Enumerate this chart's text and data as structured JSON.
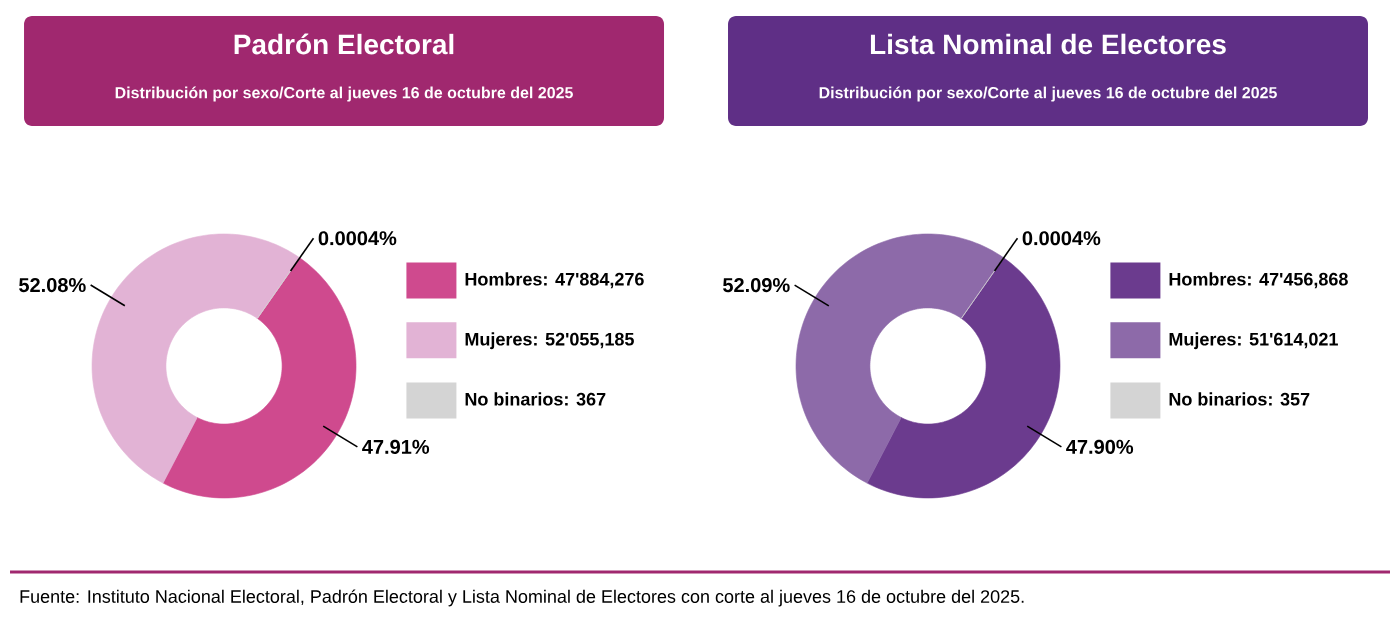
{
  "chart_data": [
    {
      "type": "donut",
      "title": "Padrón Electoral",
      "subtitle": "Distribución por sexo/Corte al jueves 16 de octubre del 2025",
      "categories": [
        "Hombres: 47'884,276",
        "Mujeres: 52'055,185",
        "No binarios: 367"
      ],
      "values": [
        47.91,
        52.08,
        0.0004
      ],
      "value_labels": [
        "47.91%",
        "52.08%",
        "0.0004%"
      ],
      "colors": [
        "#cf4a8e",
        "#e2b3d5",
        "#d4d4d4"
      ],
      "legend": "right",
      "annotations": [
        "Fuente: Instituto Nacional Electoral, Padrón Electoral y Lista Nominal de Electores con corte al jueves 16 de octubre del 2025."
      ]
    },
    {
      "type": "donut",
      "title": "Lista Nominal de Electores",
      "subtitle": "Distribución por sexo/Corte al jueves 16 de octubre del 2025",
      "categories": [
        "Hombres: 47'456,868",
        "Mujeres: 51'614,021",
        "No binarios: 357"
      ],
      "values": [
        47.9,
        52.09,
        0.0004
      ],
      "value_labels": [
        "47.90%",
        "52.09%",
        "0.0004%"
      ],
      "colors": [
        "#6b3b8e",
        "#8d6aa9",
        "#d4d4d4"
      ],
      "legend": "right"
    }
  ]
}
